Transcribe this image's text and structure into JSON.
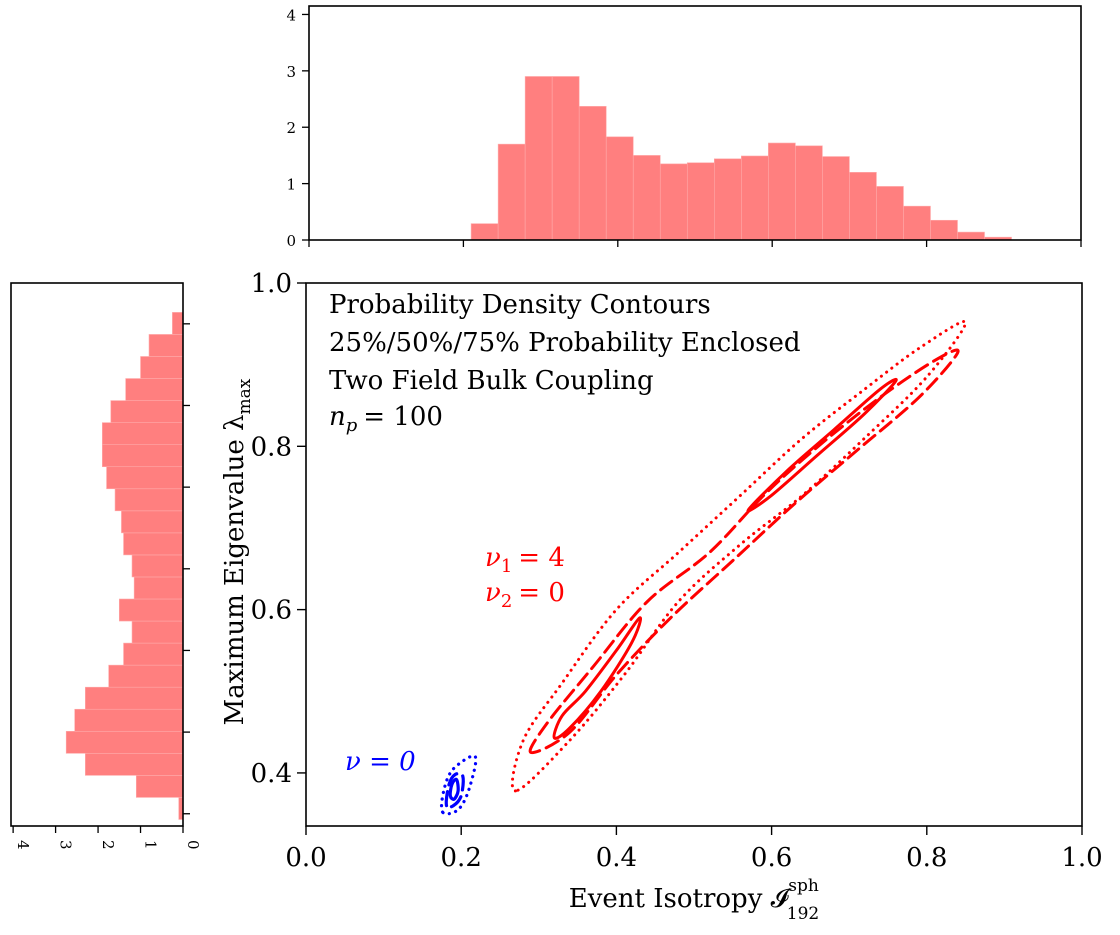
{
  "chart_data": [
    {
      "type": "contour",
      "panel": "main",
      "xlabel": "Event Isotropy 𝓘",
      "xlabel_sup": "sph",
      "xlabel_sub": "192",
      "ylabel": "Maximum Eigenvalue λ",
      "ylabel_sub": "max",
      "xlim": [
        0.0,
        1.0
      ],
      "ylim": [
        0.335,
        1.0
      ],
      "xticks": [
        0.0,
        0.2,
        0.4,
        0.6,
        0.8,
        1.0
      ],
      "xtick_labels": [
        "0.0",
        "0.2",
        "0.4",
        "0.6",
        "0.8",
        "1.0"
      ],
      "yticks": [
        0.4,
        0.6,
        0.8,
        1.0
      ],
      "ytick_labels": [
        "0.4",
        "0.6",
        "0.8",
        "1.0"
      ],
      "annotation_lines": [
        "Probability Density Contours",
        "25%/50%/75% Probability Enclosed",
        "Two Field Bulk Coupling",
        "n",
        "p",
        "= 100"
      ],
      "series": [
        {
          "name_lines": [
            "ν",
            "1",
            "= 4",
            "ν",
            "2",
            "= 0"
          ],
          "color": "#ff0000",
          "label_pos": [
            0.23,
            0.605
          ],
          "contours": [
            {
              "level": "25%",
              "style": "solid",
              "path": [
                [
                  0.32,
                  0.443
                ],
                [
                  0.33,
                  0.47
                ],
                [
                  0.36,
                  0.5
                ],
                [
                  0.4,
                  0.55
                ],
                [
                  0.43,
                  0.59
                ],
                [
                  0.42,
                  0.56
                ],
                [
                  0.38,
                  0.5
                ],
                [
                  0.34,
                  0.455
                ]
              ]
            },
            {
              "level": "25%",
              "style": "solid",
              "path": [
                [
                  0.57,
                  0.722
                ],
                [
                  0.62,
                  0.77
                ],
                [
                  0.68,
                  0.82
                ],
                [
                  0.74,
                  0.87
                ],
                [
                  0.76,
                  0.88
                ],
                [
                  0.72,
                  0.84
                ],
                [
                  0.66,
                  0.79
                ],
                [
                  0.6,
                  0.74
                ]
              ]
            },
            {
              "level": "50%",
              "style": "dashed",
              "path": [
                [
                  0.29,
                  0.425
                ],
                [
                  0.31,
                  0.46
                ],
                [
                  0.37,
                  0.53
                ],
                [
                  0.44,
                  0.61
                ],
                [
                  0.52,
                  0.67
                ],
                [
                  0.59,
                  0.74
                ],
                [
                  0.66,
                  0.8
                ],
                [
                  0.74,
                  0.86
                ],
                [
                  0.81,
                  0.905
                ],
                [
                  0.84,
                  0.915
                ],
                [
                  0.79,
                  0.86
                ],
                [
                  0.71,
                  0.795
                ],
                [
                  0.63,
                  0.73
                ],
                [
                  0.55,
                  0.66
                ],
                [
                  0.47,
                  0.59
                ],
                [
                  0.4,
                  0.52
                ],
                [
                  0.34,
                  0.45
                ]
              ]
            },
            {
              "level": "75%",
              "style": "dotted",
              "path": [
                [
                  0.27,
                  0.378
                ],
                [
                  0.28,
                  0.44
                ],
                [
                  0.33,
                  0.51
                ],
                [
                  0.4,
                  0.6
                ],
                [
                  0.48,
                  0.67
                ],
                [
                  0.56,
                  0.74
                ],
                [
                  0.64,
                  0.81
                ],
                [
                  0.72,
                  0.87
                ],
                [
                  0.79,
                  0.92
                ],
                [
                  0.85,
                  0.952
                ],
                [
                  0.8,
                  0.885
                ],
                [
                  0.72,
                  0.81
                ],
                [
                  0.64,
                  0.74
                ],
                [
                  0.56,
                  0.68
                ],
                [
                  0.48,
                  0.61
                ],
                [
                  0.41,
                  0.52
                ],
                [
                  0.34,
                  0.44
                ]
              ]
            }
          ]
        },
        {
          "name_lines": [
            "ν = 0"
          ],
          "color": "#0000ff",
          "label_pos": [
            0.055,
            0.405
          ],
          "contours": [
            {
              "level": "25%",
              "style": "solid",
              "path": [
                [
                  0.186,
                  0.372
                ],
                [
                  0.188,
                  0.386
                ],
                [
                  0.194,
                  0.392
                ],
                [
                  0.196,
                  0.378
                ],
                [
                  0.191,
                  0.368
                ]
              ]
            },
            {
              "level": "50%",
              "style": "dashed",
              "path": [
                [
                  0.181,
                  0.36
                ],
                [
                  0.184,
                  0.385
                ],
                [
                  0.192,
                  0.398
                ],
                [
                  0.202,
                  0.396
                ],
                [
                  0.2,
                  0.372
                ],
                [
                  0.19,
                  0.36
                ]
              ]
            },
            {
              "level": "75%",
              "style": "dotted",
              "path": [
                [
                  0.176,
                  0.352
                ],
                [
                  0.178,
                  0.38
                ],
                [
                  0.19,
                  0.405
                ],
                [
                  0.218,
                  0.42
                ],
                [
                  0.21,
                  0.38
                ],
                [
                  0.196,
                  0.355
                ]
              ]
            }
          ]
        }
      ]
    },
    {
      "type": "bar",
      "panel": "top-histogram",
      "orientation": "vertical",
      "color": "#ff7f7f",
      "bin_edges": [
        0.0,
        0.035,
        0.07,
        0.105,
        0.14,
        0.175,
        0.21,
        0.245,
        0.28,
        0.315,
        0.35,
        0.385,
        0.42,
        0.455,
        0.49,
        0.525,
        0.56,
        0.595,
        0.63,
        0.665,
        0.7,
        0.735,
        0.77,
        0.805,
        0.84,
        0.875,
        0.91,
        0.945,
        0.98
      ],
      "values": [
        0,
        0,
        0,
        0,
        0,
        0,
        0.29,
        1.7,
        2.9,
        2.9,
        2.37,
        1.83,
        1.5,
        1.35,
        1.37,
        1.44,
        1.49,
        1.72,
        1.67,
        1.48,
        1.2,
        0.95,
        0.6,
        0.35,
        0.14,
        0.05,
        0,
        0
      ],
      "xlim": [
        0.0,
        1.0
      ],
      "ylim": [
        0,
        4.15
      ],
      "yticks": [
        0,
        1,
        2,
        3,
        4
      ],
      "ytick_labels": [
        "0",
        "1",
        "2",
        "3",
        "4"
      ]
    },
    {
      "type": "bar",
      "panel": "left-histogram",
      "orientation": "horizontal",
      "color": "#ff7f7f",
      "bin_edges": [
        0.343,
        0.37,
        0.397,
        0.424,
        0.451,
        0.478,
        0.505,
        0.532,
        0.559,
        0.586,
        0.613,
        0.64,
        0.667,
        0.694,
        0.721,
        0.748,
        0.775,
        0.802,
        0.829,
        0.856,
        0.883,
        0.91,
        0.937,
        0.964,
        0.991
      ],
      "values": [
        0.1,
        1.1,
        2.3,
        2.75,
        2.55,
        2.3,
        1.75,
        1.4,
        1.2,
        1.5,
        1.15,
        1.2,
        1.4,
        1.45,
        1.6,
        1.8,
        1.9,
        1.9,
        1.7,
        1.35,
        1.0,
        0.8,
        0.25,
        0.0
      ],
      "xlim": [
        4.05,
        0
      ],
      "xticks": [
        4,
        3,
        2,
        1,
        0
      ],
      "xtick_labels": [
        "4",
        "3",
        "2",
        "1",
        "0"
      ]
    }
  ]
}
